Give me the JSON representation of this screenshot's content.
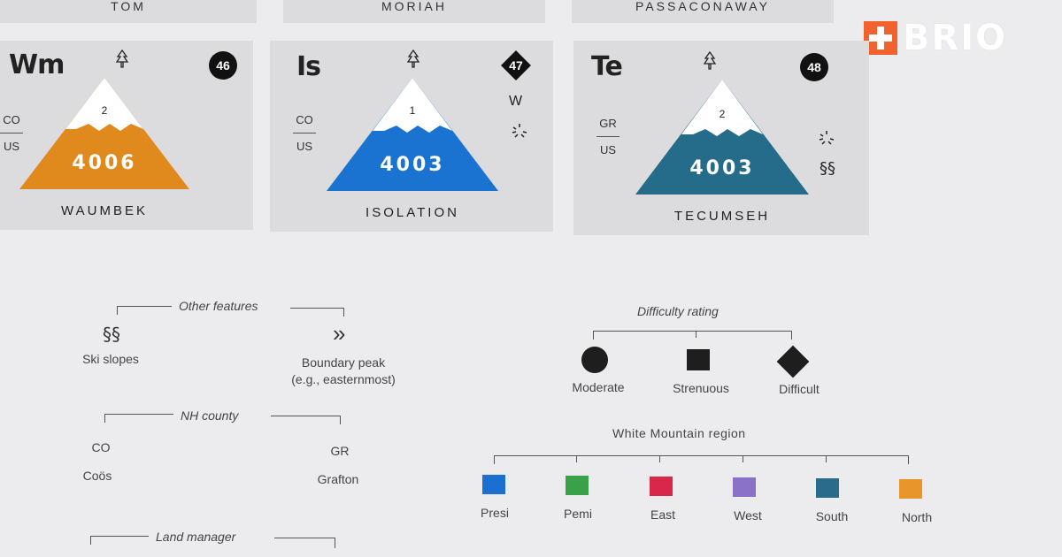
{
  "brand": {
    "plus": "+",
    "name": "BRIO",
    "color": "#f2622e"
  },
  "top_cards": [
    "TOM",
    "MORIAH",
    "PASSACONAWAY"
  ],
  "peaks": [
    {
      "symbol": "Wm",
      "number": "46",
      "number_shape": "circle",
      "rank": "2",
      "elevation": "4006",
      "name": "WAUMBEK",
      "county_top": "CO",
      "county_bottom": "US",
      "color": "#e08a1e",
      "features": [],
      "boundary": ""
    },
    {
      "symbol": "Is",
      "number": "47",
      "number_shape": "diamond",
      "rank": "1",
      "elevation": "4003",
      "name": "ISOLATION",
      "county_top": "CO",
      "county_bottom": "US",
      "color": "#1a73d0",
      "features": [
        "compass",
        "burst"
      ],
      "boundary": "W"
    },
    {
      "symbol": "Te",
      "number": "48",
      "number_shape": "circle",
      "rank": "2",
      "elevation": "4003",
      "name": "TECUMSEH",
      "county_top": "GR",
      "county_bottom": "US",
      "color": "#256b8a",
      "features": [
        "burst",
        "ski"
      ],
      "boundary": ""
    }
  ],
  "other_features": {
    "title": "Other features",
    "items": [
      {
        "icon": "ski-slopes-icon",
        "glyph": "§§",
        "label": "Ski slopes"
      },
      {
        "icon": "boundary-peak-icon",
        "glyph": "»",
        "label": "Boundary peak",
        "sub": "(e.g., easternmost)"
      }
    ]
  },
  "nh_county": {
    "title": "NH county",
    "items": [
      {
        "code": "CO",
        "label": "Coös"
      },
      {
        "code": "GR",
        "label": "Grafton"
      }
    ]
  },
  "land_manager": {
    "title": "Land manager"
  },
  "difficulty": {
    "title": "Difficulty rating",
    "items": [
      {
        "shape": "circle",
        "label": "Moderate"
      },
      {
        "shape": "square",
        "label": "Strenuous"
      },
      {
        "shape": "diamond",
        "label": "Difficult"
      }
    ]
  },
  "regions": {
    "title": "White Mountain region",
    "items": [
      {
        "label": "Presi",
        "color": "#1a6fd0"
      },
      {
        "label": "Pemi",
        "color": "#3aa04a"
      },
      {
        "label": "East",
        "color": "#d8284a"
      },
      {
        "label": "West",
        "color": "#8a72c8"
      },
      {
        "label": "South",
        "color": "#2a6b8c"
      },
      {
        "label": "North",
        "color": "#e8962a"
      }
    ]
  }
}
